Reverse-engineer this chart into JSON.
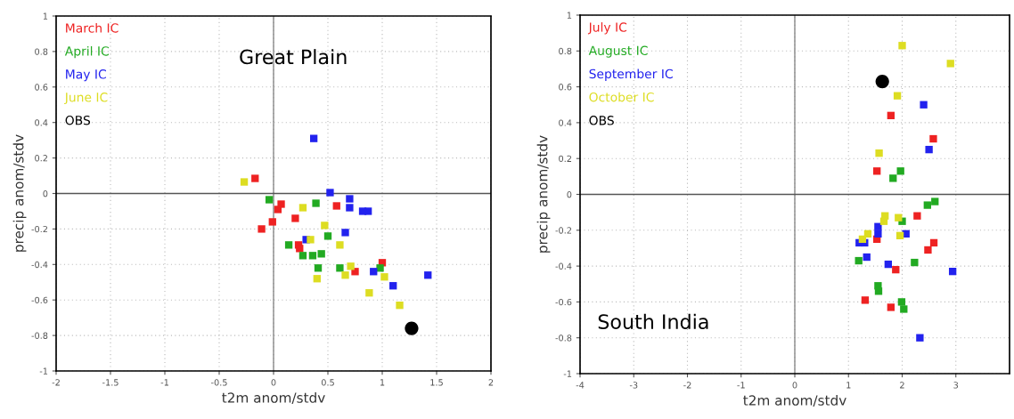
{
  "chart_data": [
    {
      "type": "scatter",
      "xlabel": "t2m anom/stdv",
      "ylabel": "precip anom/stdv",
      "xlim": [
        -2,
        2
      ],
      "ylim": [
        -1,
        1
      ],
      "xticks": [
        -2,
        -1.5,
        -1,
        -0.5,
        0,
        0.5,
        1,
        1.5,
        2
      ],
      "yticks": [
        -1,
        -0.8,
        -0.6,
        -0.4,
        -0.2,
        0,
        0.2,
        0.4,
        0.6,
        0.8,
        1
      ],
      "grid": true,
      "legend": "top left",
      "marker": "square",
      "ref_lines": [
        {
          "axis": "x",
          "value": 0,
          "color": "#888888"
        },
        {
          "axis": "y",
          "value": 0,
          "color": "#555555"
        }
      ],
      "annotations": [
        "Great Plain"
      ],
      "series": [
        {
          "name": "March IC",
          "color": "#ee2222",
          "x": [
            -0.17,
            0.07,
            0.04,
            -0.01,
            -0.11,
            0.2,
            0.58,
            0.23,
            0.24,
            1.0,
            0.75
          ],
          "values": [
            0.085,
            -0.06,
            -0.09,
            -0.16,
            -0.2,
            -0.14,
            -0.07,
            -0.29,
            -0.31,
            -0.39,
            -0.44
          ]
        },
        {
          "name": "April IC",
          "color": "#22aa22",
          "x": [
            -0.04,
            0.39,
            0.5,
            0.14,
            0.27,
            0.36,
            0.44,
            0.41,
            0.61,
            0.98
          ],
          "values": [
            -0.035,
            -0.055,
            -0.24,
            -0.29,
            -0.35,
            -0.35,
            -0.34,
            -0.42,
            -0.42,
            -0.42
          ]
        },
        {
          "name": "May IC",
          "color": "#2222ee",
          "x": [
            0.37,
            0.52,
            0.7,
            0.7,
            0.82,
            0.87,
            0.66,
            0.3,
            0.92,
            1.1,
            1.42
          ],
          "values": [
            0.31,
            0.005,
            -0.03,
            -0.08,
            -0.1,
            -0.1,
            -0.22,
            -0.26,
            -0.44,
            -0.52,
            -0.46
          ]
        },
        {
          "name": "June IC",
          "color": "#dddd22",
          "x": [
            -0.27,
            0.27,
            0.47,
            0.34,
            0.61,
            0.71,
            0.66,
            0.4,
            1.02,
            0.88,
            1.16
          ],
          "values": [
            0.065,
            -0.08,
            -0.18,
            -0.26,
            -0.29,
            -0.41,
            -0.46,
            -0.48,
            -0.47,
            -0.56,
            -0.63
          ]
        },
        {
          "name": "OBS",
          "color": "#000000",
          "marker": "circle",
          "x": [
            1.27
          ],
          "values": [
            -0.76
          ]
        }
      ]
    },
    {
      "type": "scatter",
      "xlabel": "t2m anom/stdv",
      "ylabel": "precip anom/stdv",
      "xlim": [
        -4,
        4
      ],
      "ylim": [
        -1,
        1
      ],
      "xticks": [
        -4,
        -3,
        -2,
        -1,
        0,
        1,
        2,
        3
      ],
      "yticks": [
        -1,
        -0.8,
        -0.6,
        -0.4,
        -0.2,
        0,
        0.2,
        0.4,
        0.6,
        0.8,
        1
      ],
      "grid": true,
      "legend": "top left",
      "marker": "square",
      "ref_lines": [
        {
          "axis": "x",
          "value": 0,
          "color": "#888888"
        },
        {
          "axis": "y",
          "value": 0,
          "color": "#555555"
        }
      ],
      "annotations": [
        "South India"
      ],
      "series": [
        {
          "name": "July IC",
          "color": "#ee2222",
          "x": [
            1.79,
            2.58,
            1.53,
            2.28,
            1.53,
            2.59,
            2.48,
            1.88,
            1.31,
            1.79
          ],
          "values": [
            0.44,
            0.31,
            0.13,
            -0.12,
            -0.25,
            -0.27,
            -0.31,
            -0.42,
            -0.59,
            -0.63
          ]
        },
        {
          "name": "August IC",
          "color": "#22aa22",
          "x": [
            1.97,
            1.83,
            2.47,
            2.61,
            2.0,
            1.19,
            2.23,
            1.55,
            1.56,
            1.99,
            2.03
          ],
          "values": [
            0.13,
            0.09,
            -0.06,
            -0.04,
            -0.15,
            -0.37,
            -0.38,
            -0.51,
            -0.54,
            -0.6,
            -0.64
          ]
        },
        {
          "name": "September IC",
          "color": "#2222ee",
          "x": [
            2.4,
            2.5,
            1.55,
            1.55,
            2.07,
            1.2,
            1.3,
            1.34,
            1.74,
            2.94,
            2.33
          ],
          "values": [
            0.5,
            0.25,
            -0.18,
            -0.22,
            -0.22,
            -0.27,
            -0.27,
            -0.35,
            -0.39,
            -0.43,
            -0.8
          ]
        },
        {
          "name": "October IC",
          "color": "#dddd22",
          "x": [
            2.0,
            2.9,
            1.91,
            1.57,
            1.68,
            1.66,
            1.93,
            1.36,
            1.96,
            1.26
          ],
          "values": [
            0.83,
            0.73,
            0.55,
            0.23,
            -0.12,
            -0.15,
            -0.13,
            -0.22,
            -0.23,
            -0.25
          ]
        },
        {
          "name": "OBS",
          "color": "#000000",
          "marker": "circle",
          "x": [
            1.63
          ],
          "values": [
            0.63
          ]
        }
      ]
    }
  ]
}
